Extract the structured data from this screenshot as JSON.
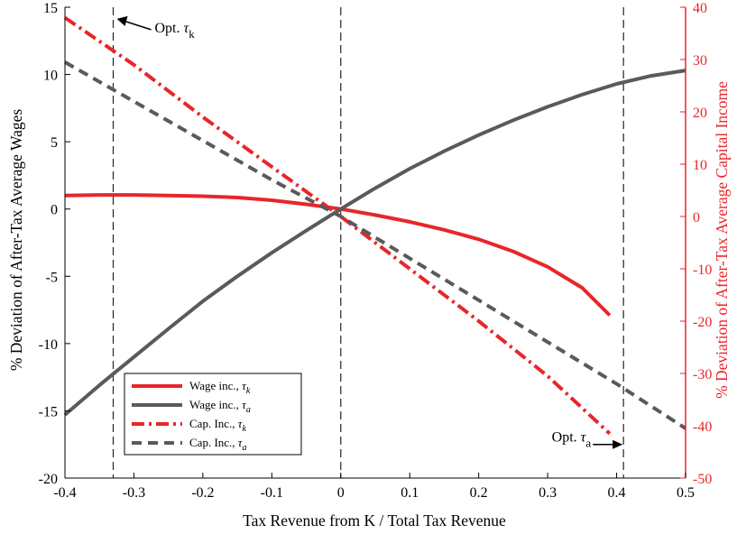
{
  "chart_data": {
    "type": "line",
    "xlabel": "Tax Revenue from K / Total Tax Revenue",
    "ylabel_left": "% Deviation of After-Tax Average Wages",
    "ylabel_right": "% Deviation of After-Tax Average Capital Income",
    "xlim": [
      -0.4,
      0.5
    ],
    "ylim_left": [
      -20,
      15
    ],
    "ylim_right": [
      -50,
      40
    ],
    "x_ticks": [
      "-0.4",
      "-0.3",
      "-0.2",
      "-0.1",
      "0",
      "0.1",
      "0.2",
      "0.3",
      "0.4",
      "0.5"
    ],
    "y_left_ticks": [
      "-20",
      "-15",
      "-10",
      "-5",
      "0",
      "5",
      "10",
      "15"
    ],
    "y_right_ticks": [
      "-50",
      "-40",
      "-30",
      "-20",
      "-10",
      "0",
      "10",
      "20",
      "30",
      "40"
    ],
    "grid": false,
    "legend_position": "bottom-left",
    "colors": {
      "red": "#e8262a",
      "gray": "#5a5a5a",
      "right_axis": "#e8262a"
    },
    "vertical_lines": [
      -0.33,
      0.0,
      0.41
    ],
    "annotations": [
      {
        "label_prefix": "Opt. ",
        "label_symbol": "τ",
        "label_sub": "k",
        "x": -0.33,
        "y_left": 13.8,
        "arrow": "left"
      },
      {
        "label_prefix": "Opt. ",
        "label_symbol": "τ",
        "label_sub": "a",
        "x": 0.41,
        "y_left": -17.5,
        "arrow": "right"
      }
    ],
    "series": [
      {
        "name": "Wage inc., τk",
        "legend_text": "Wage inc., ",
        "legend_sub": "k",
        "axis": "left",
        "color": "#e8262a",
        "style": "solid",
        "x": [
          -0.4,
          -0.35,
          -0.3,
          -0.25,
          -0.2,
          -0.15,
          -0.1,
          -0.05,
          0.0,
          0.05,
          0.1,
          0.15,
          0.2,
          0.25,
          0.3,
          0.35,
          0.39
        ],
        "y": [
          1.0,
          1.05,
          1.05,
          1.0,
          0.95,
          0.85,
          0.65,
          0.35,
          0.0,
          -0.45,
          -0.95,
          -1.55,
          -2.25,
          -3.15,
          -4.3,
          -5.85,
          -7.9
        ]
      },
      {
        "name": "Wage inc., τa",
        "legend_text": "Wage inc., ",
        "legend_sub": "a",
        "axis": "left",
        "color": "#5a5a5a",
        "style": "solid",
        "x": [
          -0.4,
          -0.35,
          -0.3,
          -0.25,
          -0.2,
          -0.15,
          -0.1,
          -0.05,
          0.0,
          0.05,
          0.1,
          0.15,
          0.2,
          0.25,
          0.3,
          0.35,
          0.4,
          0.45,
          0.5
        ],
        "y": [
          -15.3,
          -13.1,
          -11.0,
          -8.9,
          -6.85,
          -5.0,
          -3.25,
          -1.6,
          0.0,
          1.55,
          3.0,
          4.3,
          5.5,
          6.6,
          7.6,
          8.5,
          9.3,
          9.9,
          10.3
        ]
      },
      {
        "name": "Cap. Inc., τk",
        "legend_text": "Cap. Inc., ",
        "legend_sub": "k",
        "axis": "right",
        "color": "#e8262a",
        "style": "dashdot",
        "x": [
          -0.4,
          -0.3,
          -0.2,
          -0.1,
          0.0,
          0.1,
          0.2,
          0.3,
          0.39
        ],
        "y": [
          38.0,
          29.0,
          19.0,
          9.5,
          0.0,
          -10.0,
          -20.0,
          -30.5,
          -41.5
        ]
      },
      {
        "name": "Cap. Inc., τa",
        "legend_text": "Cap. Inc., ",
        "legend_sub": "a",
        "axis": "right",
        "color": "#5a5a5a",
        "style": "dashed",
        "x": [
          -0.4,
          -0.3,
          -0.2,
          -0.1,
          0.0,
          0.1,
          0.2,
          0.3,
          0.4,
          0.5
        ],
        "y": [
          29.5,
          22.0,
          14.5,
          7.0,
          0.0,
          -8.0,
          -16.0,
          -24.0,
          -32.0,
          -40.5
        ]
      }
    ]
  }
}
